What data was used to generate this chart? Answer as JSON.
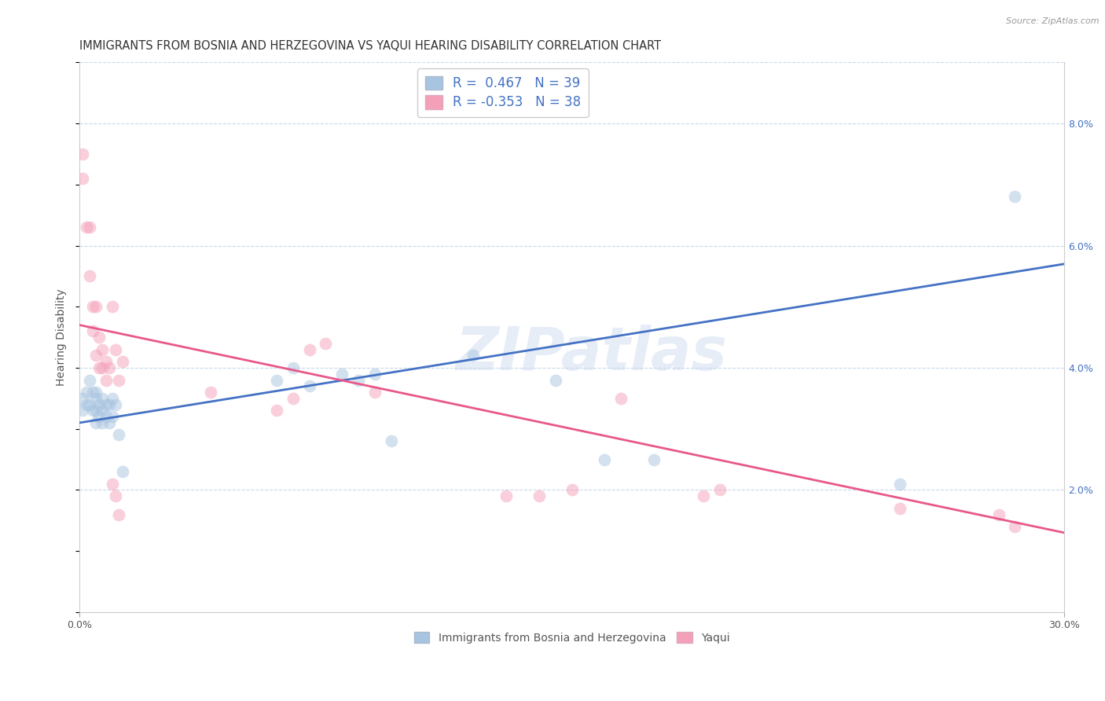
{
  "title": "IMMIGRANTS FROM BOSNIA AND HERZEGOVINA VS YAQUI HEARING DISABILITY CORRELATION CHART",
  "source": "Source: ZipAtlas.com",
  "ylabel": "Hearing Disability",
  "xlim": [
    0.0,
    0.3
  ],
  "ylim": [
    0.0,
    0.09
  ],
  "yticks_right": [
    0.02,
    0.04,
    0.06,
    0.08
  ],
  "ytick_right_labels": [
    "2.0%",
    "4.0%",
    "6.0%",
    "8.0%"
  ],
  "blue_color": "#a8c4e0",
  "pink_color": "#f4a0b8",
  "blue_line_color": "#4472c4",
  "pink_line_color": "#e8588a",
  "legend_blue_label": "Immigrants from Bosnia and Herzegovina",
  "legend_pink_label": "Yaqui",
  "watermark": "ZIPatlas",
  "blue_x": [
    0.001,
    0.001,
    0.002,
    0.002,
    0.003,
    0.003,
    0.004,
    0.004,
    0.005,
    0.005,
    0.005,
    0.005,
    0.006,
    0.006,
    0.007,
    0.007,
    0.007,
    0.008,
    0.008,
    0.009,
    0.009,
    0.01,
    0.01,
    0.011,
    0.012,
    0.013,
    0.06,
    0.065,
    0.07,
    0.08,
    0.085,
    0.09,
    0.095,
    0.12,
    0.145,
    0.16,
    0.175,
    0.25,
    0.285
  ],
  "blue_y": [
    0.035,
    0.033,
    0.036,
    0.034,
    0.038,
    0.034,
    0.036,
    0.033,
    0.036,
    0.035,
    0.033,
    0.031,
    0.034,
    0.032,
    0.035,
    0.033,
    0.031,
    0.034,
    0.032,
    0.034,
    0.031,
    0.035,
    0.032,
    0.034,
    0.029,
    0.023,
    0.038,
    0.04,
    0.037,
    0.039,
    0.038,
    0.039,
    0.028,
    0.042,
    0.038,
    0.025,
    0.025,
    0.021,
    0.068
  ],
  "pink_x": [
    0.001,
    0.001,
    0.002,
    0.003,
    0.003,
    0.004,
    0.004,
    0.005,
    0.005,
    0.006,
    0.006,
    0.007,
    0.007,
    0.008,
    0.008,
    0.009,
    0.01,
    0.011,
    0.012,
    0.013,
    0.04,
    0.06,
    0.065,
    0.07,
    0.075,
    0.09,
    0.13,
    0.14,
    0.15,
    0.165,
    0.19,
    0.195,
    0.25,
    0.28,
    0.285,
    0.01,
    0.011,
    0.012
  ],
  "pink_y": [
    0.075,
    0.071,
    0.063,
    0.063,
    0.055,
    0.05,
    0.046,
    0.05,
    0.042,
    0.045,
    0.04,
    0.043,
    0.04,
    0.041,
    0.038,
    0.04,
    0.05,
    0.043,
    0.038,
    0.041,
    0.036,
    0.033,
    0.035,
    0.043,
    0.044,
    0.036,
    0.019,
    0.019,
    0.02,
    0.035,
    0.019,
    0.02,
    0.017,
    0.016,
    0.014,
    0.021,
    0.019,
    0.016
  ],
  "blue_trend_x": [
    0.0,
    0.3
  ],
  "blue_trend_y": [
    0.031,
    0.057
  ],
  "pink_trend_x": [
    0.0,
    0.3
  ],
  "pink_trend_y": [
    0.047,
    0.013
  ],
  "background_color": "#ffffff",
  "grid_color": "#c8d8ec",
  "title_fontsize": 10.5,
  "axis_fontsize": 10,
  "tick_fontsize": 9,
  "marker_size": 130,
  "marker_alpha": 0.5,
  "line_width": 2.0
}
